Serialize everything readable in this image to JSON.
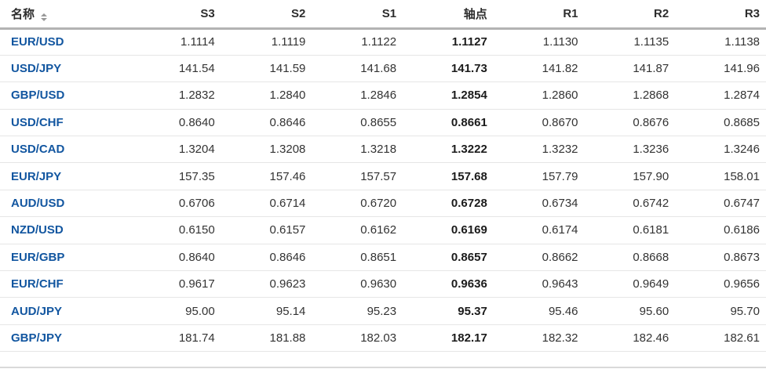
{
  "colors": {
    "link_blue": "#1256a0",
    "header_text": "#2d2d2d",
    "value_text": "#333333",
    "pivot_text": "#1b1b1b",
    "header_border": "#b3b3b3",
    "row_border": "#e6e6e6",
    "sort_icon": "#999999",
    "bottom_strip": "#d9d9d9"
  },
  "table": {
    "columns": [
      {
        "key": "name",
        "label": "名称",
        "align": "left",
        "sortable": true
      },
      {
        "key": "s3",
        "label": "S3"
      },
      {
        "key": "s2",
        "label": "S2"
      },
      {
        "key": "s1",
        "label": "S1"
      },
      {
        "key": "pivot",
        "label": "轴点",
        "emphasis": true
      },
      {
        "key": "r1",
        "label": "R1"
      },
      {
        "key": "r2",
        "label": "R2"
      },
      {
        "key": "r3",
        "label": "R3"
      }
    ],
    "rows": [
      {
        "name": "EUR/USD",
        "s3": "1.1114",
        "s2": "1.1119",
        "s1": "1.1122",
        "pivot": "1.1127",
        "r1": "1.1130",
        "r2": "1.1135",
        "r3": "1.1138"
      },
      {
        "name": "USD/JPY",
        "s3": "141.54",
        "s2": "141.59",
        "s1": "141.68",
        "pivot": "141.73",
        "r1": "141.82",
        "r2": "141.87",
        "r3": "141.96"
      },
      {
        "name": "GBP/USD",
        "s3": "1.2832",
        "s2": "1.2840",
        "s1": "1.2846",
        "pivot": "1.2854",
        "r1": "1.2860",
        "r2": "1.2868",
        "r3": "1.2874"
      },
      {
        "name": "USD/CHF",
        "s3": "0.8640",
        "s2": "0.8646",
        "s1": "0.8655",
        "pivot": "0.8661",
        "r1": "0.8670",
        "r2": "0.8676",
        "r3": "0.8685"
      },
      {
        "name": "USD/CAD",
        "s3": "1.3204",
        "s2": "1.3208",
        "s1": "1.3218",
        "pivot": "1.3222",
        "r1": "1.3232",
        "r2": "1.3236",
        "r3": "1.3246"
      },
      {
        "name": "EUR/JPY",
        "s3": "157.35",
        "s2": "157.46",
        "s1": "157.57",
        "pivot": "157.68",
        "r1": "157.79",
        "r2": "157.90",
        "r3": "158.01"
      },
      {
        "name": "AUD/USD",
        "s3": "0.6706",
        "s2": "0.6714",
        "s1": "0.6720",
        "pivot": "0.6728",
        "r1": "0.6734",
        "r2": "0.6742",
        "r3": "0.6747"
      },
      {
        "name": "NZD/USD",
        "s3": "0.6150",
        "s2": "0.6157",
        "s1": "0.6162",
        "pivot": "0.6169",
        "r1": "0.6174",
        "r2": "0.6181",
        "r3": "0.6186"
      },
      {
        "name": "EUR/GBP",
        "s3": "0.8640",
        "s2": "0.8646",
        "s1": "0.8651",
        "pivot": "0.8657",
        "r1": "0.8662",
        "r2": "0.8668",
        "r3": "0.8673"
      },
      {
        "name": "EUR/CHF",
        "s3": "0.9617",
        "s2": "0.9623",
        "s1": "0.9630",
        "pivot": "0.9636",
        "r1": "0.9643",
        "r2": "0.9649",
        "r3": "0.9656"
      },
      {
        "name": "AUD/JPY",
        "s3": "95.00",
        "s2": "95.14",
        "s1": "95.23",
        "pivot": "95.37",
        "r1": "95.46",
        "r2": "95.60",
        "r3": "95.70"
      },
      {
        "name": "GBP/JPY",
        "s3": "181.74",
        "s2": "181.88",
        "s1": "182.03",
        "pivot": "182.17",
        "r1": "182.32",
        "r2": "182.46",
        "r3": "182.61"
      }
    ]
  }
}
